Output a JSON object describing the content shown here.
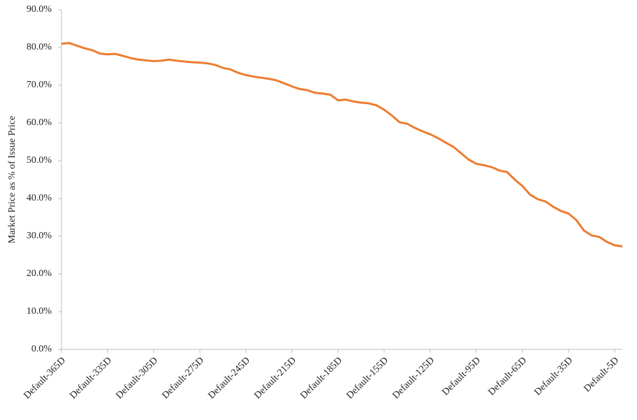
{
  "chart_data": {
    "type": "line",
    "y_label": "Market Price as % of Issue Price",
    "x": [
      -365,
      -360,
      -355,
      -350,
      -345,
      -340,
      -335,
      -330,
      -325,
      -320,
      -315,
      -310,
      -305,
      -300,
      -295,
      -290,
      -285,
      -280,
      -275,
      -270,
      -265,
      -260,
      -255,
      -250,
      -245,
      -240,
      -235,
      -230,
      -225,
      -220,
      -215,
      -210,
      -205,
      -200,
      -195,
      -190,
      -185,
      -180,
      -175,
      -170,
      -165,
      -160,
      -155,
      -150,
      -145,
      -140,
      -135,
      -130,
      -125,
      -120,
      -115,
      -110,
      -105,
      -100,
      -95,
      -90,
      -85,
      -80,
      -75,
      -70,
      -65,
      -60,
      -55,
      -50,
      -45,
      -40,
      -35,
      -30,
      -25,
      -20,
      -15,
      -10,
      -5,
      0
    ],
    "series": [
      {
        "name": "Market Price",
        "color": "#ed7d31",
        "values": [
          81.0,
          81.2,
          80.5,
          79.8,
          79.3,
          78.4,
          78.2,
          78.3,
          77.8,
          77.2,
          76.8,
          76.6,
          76.4,
          76.5,
          76.8,
          76.5,
          76.3,
          76.1,
          76.0,
          75.8,
          75.4,
          74.6,
          74.2,
          73.3,
          72.7,
          72.3,
          72.0,
          71.7,
          71.3,
          70.5,
          69.7,
          69.0,
          68.7,
          68.0,
          67.8,
          67.5,
          66.0,
          66.2,
          65.7,
          65.4,
          65.2,
          64.7,
          63.5,
          62.0,
          60.2,
          59.8,
          58.7,
          57.8,
          57.0,
          56.0,
          54.8,
          53.7,
          52.0,
          50.3,
          49.2,
          48.8,
          48.3,
          47.4,
          47.0,
          45.0,
          43.3,
          41.0,
          39.8,
          39.2,
          37.8,
          36.7,
          36.0,
          34.3,
          31.5,
          30.2,
          29.8,
          28.5,
          27.6,
          27.3
        ]
      }
    ],
    "xlim": [
      -365,
      0
    ],
    "xticks": [
      {
        "value": -365,
        "label": "Default-365D"
      },
      {
        "value": -335,
        "label": "Default-335D"
      },
      {
        "value": -305,
        "label": "Default-305D"
      },
      {
        "value": -275,
        "label": "Default-275D"
      },
      {
        "value": -245,
        "label": "Default-245D"
      },
      {
        "value": -215,
        "label": "Default-215D"
      },
      {
        "value": -185,
        "label": "Default-185D"
      },
      {
        "value": -155,
        "label": "Default-155D"
      },
      {
        "value": -125,
        "label": "Default-125D"
      },
      {
        "value": -95,
        "label": "Default-95D"
      },
      {
        "value": -65,
        "label": "Default-65D"
      },
      {
        "value": -35,
        "label": "Default-35D"
      },
      {
        "value": -5,
        "label": "Default-5D"
      }
    ],
    "ylim": [
      0,
      90
    ],
    "yticks": [
      {
        "value": 0,
        "label": "0.0%"
      },
      {
        "value": 10,
        "label": "10.0%"
      },
      {
        "value": 20,
        "label": "20.0%"
      },
      {
        "value": 30,
        "label": "30.0%"
      },
      {
        "value": 40,
        "label": "40.0%"
      },
      {
        "value": 50,
        "label": "50.0%"
      },
      {
        "value": 60,
        "label": "60.0%"
      },
      {
        "value": 70,
        "label": "70.0%"
      },
      {
        "value": 80,
        "label": "80.0%"
      },
      {
        "value": 90,
        "label": "90.0%"
      }
    ],
    "grid": false
  }
}
